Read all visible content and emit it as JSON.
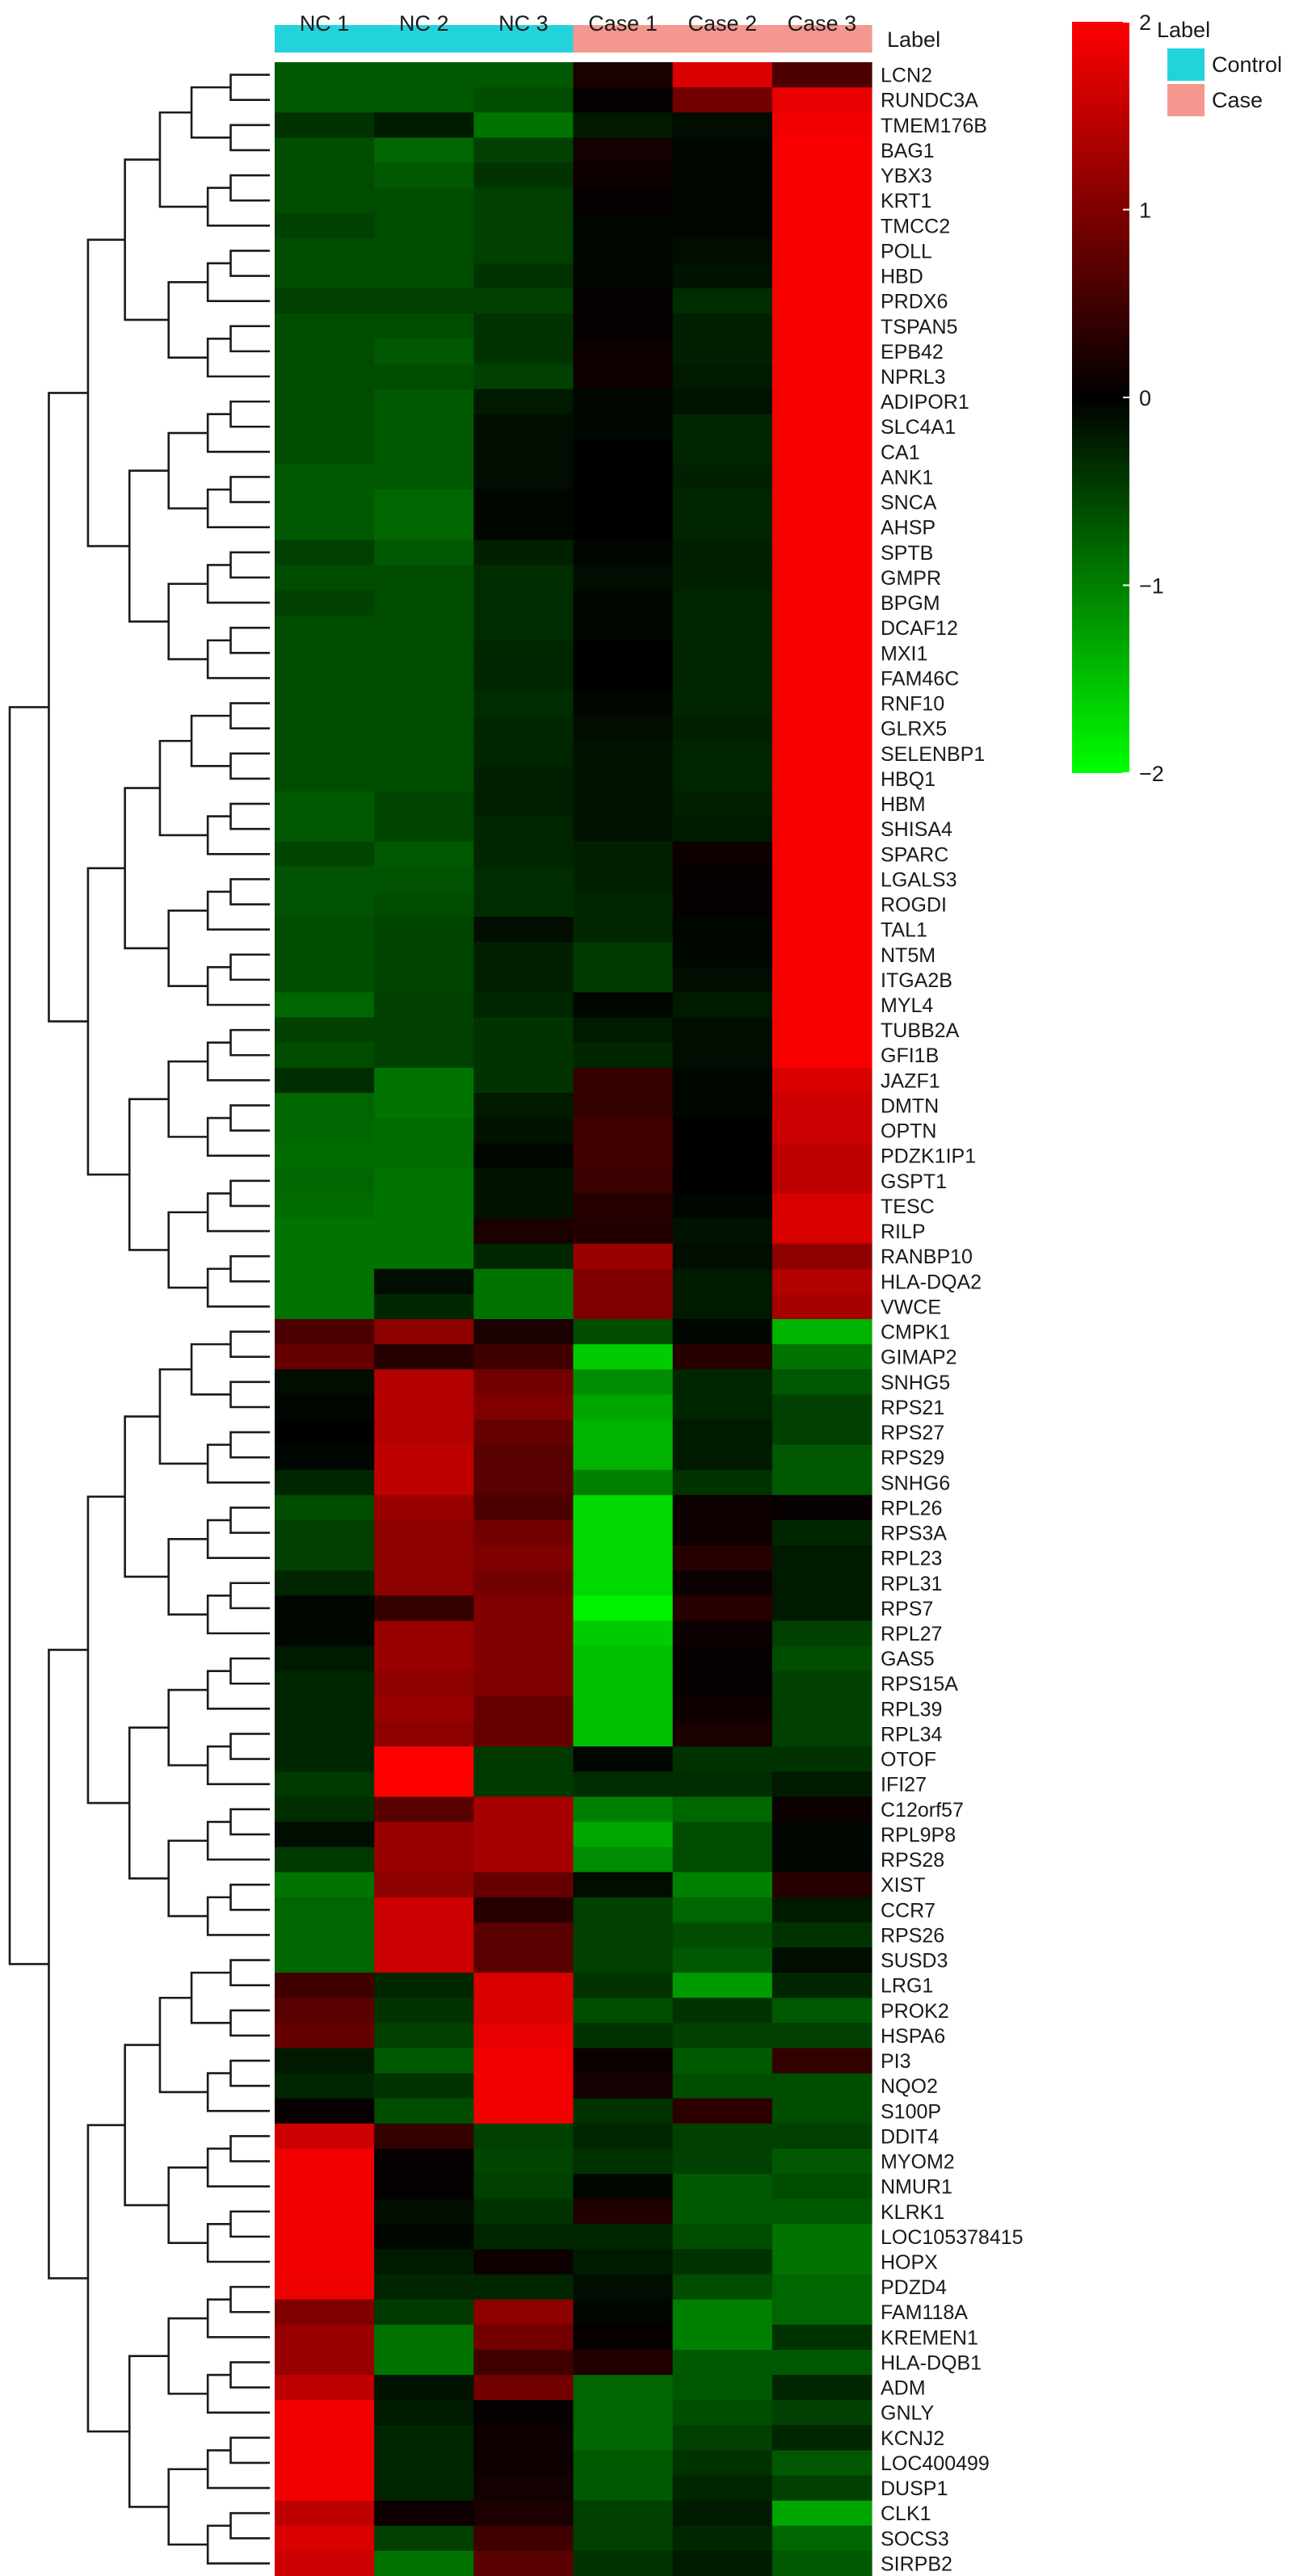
{
  "chart_data": {
    "type": "heatmap",
    "label_title": "Label",
    "columns": [
      "NC 1",
      "NC 2",
      "NC 3",
      "Case 1",
      "Case 2",
      "Case 3"
    ],
    "column_groups": [
      "Control",
      "Control",
      "Control",
      "Case",
      "Case",
      "Case"
    ],
    "legend": {
      "title": "Label",
      "entries": [
        {
          "name": "Control",
          "color": "#22d3dc"
        },
        {
          "name": "Case",
          "color": "#f4978e"
        }
      ]
    },
    "colorbar": {
      "min": -2,
      "max": 2,
      "ticks": [
        "2",
        "1",
        "0",
        "−1",
        "−2"
      ],
      "colors": {
        "low": "#00ff00",
        "mid": "#000000",
        "high": "#ff0000"
      }
    },
    "rows": [
      {
        "gene": "LCN2",
        "values": [
          -0.7,
          -0.7,
          -0.7,
          0.2,
          1.7,
          0.6
        ]
      },
      {
        "gene": "RUNDC3A",
        "values": [
          -0.7,
          -0.7,
          -0.6,
          0.05,
          0.9,
          1.8
        ]
      },
      {
        "gene": "TMEM176B",
        "values": [
          -0.4,
          -0.2,
          -0.9,
          -0.2,
          -0.1,
          1.9
        ]
      },
      {
        "gene": "BAG1",
        "values": [
          -0.6,
          -0.8,
          -0.5,
          0.15,
          -0.05,
          1.95
        ]
      },
      {
        "gene": "YBX3",
        "values": [
          -0.6,
          -0.7,
          -0.4,
          0.1,
          -0.05,
          1.95
        ]
      },
      {
        "gene": "KRT1",
        "values": [
          -0.6,
          -0.6,
          -0.5,
          0.05,
          -0.05,
          1.95
        ]
      },
      {
        "gene": "TMCC2",
        "values": [
          -0.5,
          -0.6,
          -0.5,
          -0.05,
          -0.05,
          1.95
        ]
      },
      {
        "gene": "POLL",
        "values": [
          -0.6,
          -0.6,
          -0.5,
          -0.05,
          -0.1,
          1.95
        ]
      },
      {
        "gene": "HBD",
        "values": [
          -0.6,
          -0.6,
          -0.4,
          -0.05,
          -0.15,
          1.95
        ]
      },
      {
        "gene": "PRDX6",
        "values": [
          -0.5,
          -0.5,
          -0.5,
          0.05,
          -0.35,
          1.95
        ]
      },
      {
        "gene": "TSPAN5",
        "values": [
          -0.6,
          -0.6,
          -0.4,
          0.05,
          -0.25,
          1.95
        ]
      },
      {
        "gene": "EPB42",
        "values": [
          -0.6,
          -0.7,
          -0.4,
          0.1,
          -0.25,
          1.95
        ]
      },
      {
        "gene": "NPRL3",
        "values": [
          -0.6,
          -0.6,
          -0.5,
          0.1,
          -0.2,
          1.95
        ]
      },
      {
        "gene": "ADIPOR1",
        "values": [
          -0.6,
          -0.7,
          -0.2,
          -0.05,
          -0.15,
          1.95
        ]
      },
      {
        "gene": "SLC4A1",
        "values": [
          -0.6,
          -0.7,
          -0.1,
          -0.05,
          -0.3,
          1.95
        ]
      },
      {
        "gene": "CA1",
        "values": [
          -0.6,
          -0.7,
          -0.1,
          0.0,
          -0.3,
          1.95
        ]
      },
      {
        "gene": "ANK1",
        "values": [
          -0.7,
          -0.7,
          -0.1,
          0.0,
          -0.25,
          1.95
        ]
      },
      {
        "gene": "SNCA",
        "values": [
          -0.7,
          -0.8,
          -0.05,
          0.0,
          -0.3,
          1.95
        ]
      },
      {
        "gene": "AHSP",
        "values": [
          -0.7,
          -0.8,
          -0.05,
          0.0,
          -0.3,
          1.95
        ]
      },
      {
        "gene": "SPTB",
        "values": [
          -0.5,
          -0.7,
          -0.25,
          -0.05,
          -0.25,
          1.95
        ]
      },
      {
        "gene": "GMPR",
        "values": [
          -0.6,
          -0.6,
          -0.35,
          -0.1,
          -0.25,
          1.95
        ]
      },
      {
        "gene": "BPGM",
        "values": [
          -0.5,
          -0.6,
          -0.35,
          -0.05,
          -0.3,
          1.95
        ]
      },
      {
        "gene": "DCAF12",
        "values": [
          -0.6,
          -0.6,
          -0.35,
          -0.05,
          -0.3,
          1.95
        ]
      },
      {
        "gene": "MXI1",
        "values": [
          -0.6,
          -0.6,
          -0.3,
          0.0,
          -0.3,
          1.95
        ]
      },
      {
        "gene": "FAM46C",
        "values": [
          -0.6,
          -0.6,
          -0.3,
          0.0,
          -0.3,
          1.95
        ]
      },
      {
        "gene": "RNF10",
        "values": [
          -0.6,
          -0.6,
          -0.35,
          -0.05,
          -0.3,
          1.95
        ]
      },
      {
        "gene": "GLRX5",
        "values": [
          -0.6,
          -0.6,
          -0.3,
          -0.1,
          -0.25,
          1.95
        ]
      },
      {
        "gene": "SELENBP1",
        "values": [
          -0.6,
          -0.6,
          -0.3,
          -0.15,
          -0.3,
          1.95
        ]
      },
      {
        "gene": "HBQ1",
        "values": [
          -0.6,
          -0.6,
          -0.25,
          -0.15,
          -0.3,
          1.95
        ]
      },
      {
        "gene": "HBM",
        "values": [
          -0.7,
          -0.55,
          -0.25,
          -0.15,
          -0.25,
          1.95
        ]
      },
      {
        "gene": "SHISA4",
        "values": [
          -0.7,
          -0.55,
          -0.3,
          -0.15,
          -0.2,
          1.95
        ]
      },
      {
        "gene": "SPARC",
        "values": [
          -0.55,
          -0.7,
          -0.3,
          -0.25,
          0.1,
          1.95
        ]
      },
      {
        "gene": "LGALS3",
        "values": [
          -0.65,
          -0.65,
          -0.35,
          -0.25,
          0.05,
          1.95
        ]
      },
      {
        "gene": "ROGDI",
        "values": [
          -0.65,
          -0.6,
          -0.35,
          -0.3,
          0.05,
          1.95
        ]
      },
      {
        "gene": "TAL1",
        "values": [
          -0.6,
          -0.55,
          -0.1,
          -0.3,
          -0.05,
          1.95
        ]
      },
      {
        "gene": "NT5M",
        "values": [
          -0.6,
          -0.55,
          -0.25,
          -0.45,
          -0.05,
          1.95
        ]
      },
      {
        "gene": "ITGA2B",
        "values": [
          -0.6,
          -0.55,
          -0.25,
          -0.45,
          -0.1,
          1.95
        ]
      },
      {
        "gene": "MYL4",
        "values": [
          -0.8,
          -0.5,
          -0.3,
          -0.05,
          -0.2,
          1.95
        ]
      },
      {
        "gene": "TUBB2A",
        "values": [
          -0.5,
          -0.5,
          -0.4,
          -0.2,
          -0.1,
          1.95
        ]
      },
      {
        "gene": "GFI1B",
        "values": [
          -0.6,
          -0.5,
          -0.4,
          -0.3,
          -0.1,
          1.95
        ]
      },
      {
        "gene": "JAZF1",
        "values": [
          -0.35,
          -0.9,
          -0.4,
          0.4,
          -0.05,
          1.7
        ]
      },
      {
        "gene": "DMTN",
        "values": [
          -0.8,
          -0.9,
          -0.2,
          0.4,
          -0.05,
          1.6
        ]
      },
      {
        "gene": "OPTN",
        "values": [
          -0.8,
          -0.85,
          -0.15,
          0.5,
          0.0,
          1.6
        ]
      },
      {
        "gene": "PDZK1IP1",
        "values": [
          -0.85,
          -0.85,
          -0.05,
          0.5,
          0.0,
          1.5
        ]
      },
      {
        "gene": "GSPT1",
        "values": [
          -0.8,
          -0.9,
          -0.15,
          0.45,
          0.0,
          1.5
        ]
      },
      {
        "gene": "TESC",
        "values": [
          -0.85,
          -0.9,
          -0.15,
          0.3,
          -0.05,
          1.7
        ]
      },
      {
        "gene": "RILP",
        "values": [
          -0.9,
          -0.9,
          0.2,
          0.25,
          -0.15,
          1.7
        ]
      },
      {
        "gene": "RANBP10",
        "values": [
          -0.9,
          -0.9,
          -0.3,
          1.2,
          -0.1,
          1.1
        ]
      },
      {
        "gene": "HLA-DQA2",
        "values": [
          -0.9,
          -0.1,
          -0.9,
          1.0,
          -0.2,
          1.4
        ]
      },
      {
        "gene": "VWCE",
        "values": [
          -0.9,
          -0.3,
          -0.9,
          1.0,
          -0.2,
          1.3
        ]
      },
      {
        "gene": "CMPK1",
        "values": [
          0.6,
          1.1,
          0.2,
          -0.6,
          -0.05,
          -1.4
        ]
      },
      {
        "gene": "GIMAP2",
        "values": [
          0.8,
          0.3,
          0.5,
          -1.6,
          0.3,
          -0.9
        ]
      },
      {
        "gene": "SNHG5",
        "values": [
          -0.1,
          1.4,
          0.9,
          -1.1,
          -0.3,
          -0.7
        ]
      },
      {
        "gene": "RPS21",
        "values": [
          -0.05,
          1.4,
          1.0,
          -1.3,
          -0.3,
          -0.5
        ]
      },
      {
        "gene": "RPS27",
        "values": [
          0.0,
          1.4,
          0.8,
          -1.4,
          -0.2,
          -0.5
        ]
      },
      {
        "gene": "RPS29",
        "values": [
          -0.05,
          1.5,
          0.7,
          -1.4,
          -0.2,
          -0.7
        ]
      },
      {
        "gene": "SNHG6",
        "values": [
          -0.3,
          1.5,
          0.7,
          -1.0,
          -0.4,
          -0.7
        ]
      },
      {
        "gene": "RPL26",
        "values": [
          -0.6,
          1.2,
          0.6,
          -1.7,
          0.1,
          0.05
        ]
      },
      {
        "gene": "RPS3A",
        "values": [
          -0.5,
          1.1,
          0.9,
          -1.7,
          0.1,
          -0.3
        ]
      },
      {
        "gene": "RPL23",
        "values": [
          -0.5,
          1.1,
          1.0,
          -1.7,
          0.3,
          -0.2
        ]
      },
      {
        "gene": "RPL31",
        "values": [
          -0.3,
          1.1,
          0.9,
          -1.7,
          0.1,
          -0.2
        ]
      },
      {
        "gene": "RPS7",
        "values": [
          -0.05,
          0.4,
          1.0,
          -1.9,
          0.3,
          -0.2
        ]
      },
      {
        "gene": "RPL27",
        "values": [
          -0.05,
          1.2,
          1.0,
          -1.6,
          0.1,
          -0.5
        ]
      },
      {
        "gene": "GAS5",
        "values": [
          -0.2,
          1.2,
          1.0,
          -1.5,
          0.05,
          -0.6
        ]
      },
      {
        "gene": "RPS15A",
        "values": [
          -0.3,
          1.1,
          1.0,
          -1.5,
          0.05,
          -0.5
        ]
      },
      {
        "gene": "RPL39",
        "values": [
          -0.3,
          1.2,
          0.8,
          -1.5,
          0.1,
          -0.5
        ]
      },
      {
        "gene": "RPL34",
        "values": [
          -0.3,
          1.1,
          0.8,
          -1.5,
          0.2,
          -0.5
        ]
      },
      {
        "gene": "OTOF",
        "values": [
          -0.3,
          2.0,
          -0.45,
          -0.05,
          -0.4,
          -0.4
        ]
      },
      {
        "gene": "IFI27",
        "values": [
          -0.45,
          2.0,
          -0.45,
          -0.35,
          -0.35,
          -0.2
        ]
      },
      {
        "gene": "C12orf57",
        "values": [
          -0.35,
          0.7,
          1.3,
          -1.0,
          -0.8,
          0.1
        ]
      },
      {
        "gene": "RPL9P8",
        "values": [
          -0.1,
          1.2,
          1.3,
          -1.3,
          -0.6,
          -0.05
        ]
      },
      {
        "gene": "RPS28",
        "values": [
          -0.45,
          1.2,
          1.3,
          -1.1,
          -0.6,
          -0.05
        ]
      },
      {
        "gene": "XIST",
        "values": [
          -0.9,
          1.1,
          0.8,
          -0.1,
          -1.0,
          0.3
        ]
      },
      {
        "gene": "CCR7",
        "values": [
          -0.8,
          1.6,
          0.3,
          -0.5,
          -0.8,
          -0.2
        ]
      },
      {
        "gene": "RPS26",
        "values": [
          -0.8,
          1.6,
          0.7,
          -0.5,
          -0.6,
          -0.4
        ]
      },
      {
        "gene": "SUSD3",
        "values": [
          -0.8,
          1.6,
          0.7,
          -0.5,
          -0.7,
          -0.1
        ]
      },
      {
        "gene": "LRG1",
        "values": [
          0.5,
          -0.3,
          1.7,
          -0.4,
          -1.2,
          -0.3
        ]
      },
      {
        "gene": "PROK2",
        "values": [
          0.7,
          -0.4,
          1.7,
          -0.6,
          -0.4,
          -0.7
        ]
      },
      {
        "gene": "HSPA6",
        "values": [
          0.8,
          -0.5,
          1.8,
          -0.4,
          -0.5,
          -0.5
        ]
      },
      {
        "gene": "PI3",
        "values": [
          -0.2,
          -0.7,
          1.9,
          0.1,
          -0.7,
          0.4
        ]
      },
      {
        "gene": "NQO2",
        "values": [
          -0.3,
          -0.4,
          1.9,
          0.15,
          -0.6,
          -0.6
        ]
      },
      {
        "gene": "S100P",
        "values": [
          0.05,
          -0.6,
          1.9,
          -0.4,
          0.35,
          -0.6
        ]
      },
      {
        "gene": "DDIT4",
        "values": [
          1.6,
          0.4,
          -0.5,
          -0.3,
          -0.5,
          -0.5
        ]
      },
      {
        "gene": "MYOM2",
        "values": [
          1.9,
          0.05,
          -0.55,
          -0.4,
          -0.5,
          -0.7
        ]
      },
      {
        "gene": "NMUR1",
        "values": [
          1.9,
          0.05,
          -0.5,
          -0.05,
          -0.7,
          -0.6
        ]
      },
      {
        "gene": "KLRK1",
        "values": [
          1.9,
          -0.1,
          -0.4,
          0.25,
          -0.7,
          -0.7
        ]
      },
      {
        "gene": "LOC105378415",
        "values": [
          1.9,
          -0.05,
          -0.3,
          -0.3,
          -0.6,
          -0.9
        ]
      },
      {
        "gene": "HOPX",
        "values": [
          1.9,
          -0.2,
          0.1,
          -0.2,
          -0.4,
          -0.9
        ]
      },
      {
        "gene": "PDZD4",
        "values": [
          1.85,
          -0.3,
          -0.3,
          -0.1,
          -0.6,
          -0.8
        ]
      },
      {
        "gene": "FAM118A",
        "values": [
          1.0,
          -0.45,
          1.1,
          -0.05,
          -1.0,
          -0.8
        ]
      },
      {
        "gene": "KREMEN1",
        "values": [
          1.2,
          -0.9,
          0.9,
          0.05,
          -1.0,
          -0.4
        ]
      },
      {
        "gene": "HLA-DQB1",
        "values": [
          1.2,
          -0.9,
          0.5,
          0.25,
          -0.7,
          -0.7
        ]
      },
      {
        "gene": "ADM",
        "values": [
          1.5,
          -0.15,
          0.9,
          -0.8,
          -0.7,
          -0.3
        ]
      },
      {
        "gene": "GNLY",
        "values": [
          1.9,
          -0.2,
          0.05,
          -0.8,
          -0.6,
          -0.5
        ]
      },
      {
        "gene": "KCNJ2",
        "values": [
          1.9,
          -0.3,
          0.1,
          -0.8,
          -0.5,
          -0.3
        ]
      },
      {
        "gene": "LOC400499",
        "values": [
          1.9,
          -0.3,
          0.1,
          -0.7,
          -0.4,
          -0.7
        ]
      },
      {
        "gene": "DUSP1",
        "values": [
          1.9,
          -0.3,
          0.15,
          -0.7,
          -0.3,
          -0.5
        ]
      },
      {
        "gene": "CLK1",
        "values": [
          1.5,
          0.1,
          0.2,
          -0.5,
          -0.2,
          -1.3
        ]
      },
      {
        "gene": "SOCS3",
        "values": [
          1.7,
          -0.5,
          0.5,
          -0.5,
          -0.3,
          -0.8
        ]
      },
      {
        "gene": "SIRPB2",
        "values": [
          1.6,
          -0.9,
          0.7,
          -0.4,
          -0.2,
          -0.7
        ]
      }
    ]
  }
}
